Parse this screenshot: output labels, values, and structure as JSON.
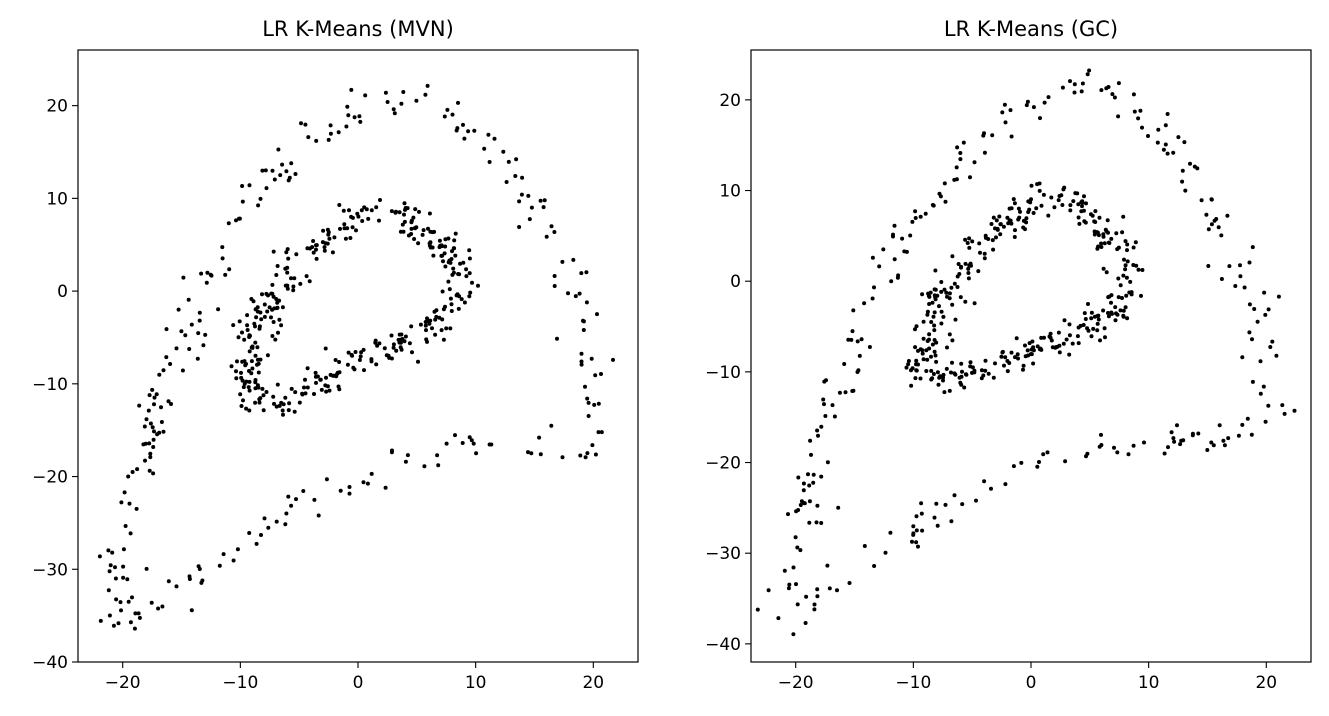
{
  "chart_data": [
    {
      "type": "scatter",
      "title": "LR K-Means (MVN)",
      "xlabel": "",
      "ylabel": "",
      "xlim": [
        -23.8,
        23.8
      ],
      "ylim": [
        -40,
        26
      ],
      "xticks": [
        -20,
        -10,
        0,
        10,
        20
      ],
      "yticks": [
        -40,
        -30,
        -20,
        -10,
        0,
        10,
        20
      ],
      "xtick_labels": [
        "−20",
        "−10",
        "0",
        "10",
        "20"
      ],
      "ytick_labels": [
        "−40",
        "−30",
        "−20",
        "−10",
        "0",
        "10",
        "20"
      ],
      "grid": false,
      "point_color": "#000000",
      "outer_ring_anchors": [
        [
          -20.8,
          -36.5
        ],
        [
          -20.5,
          -32
        ],
        [
          -20.2,
          -28
        ],
        [
          -19.5,
          -24
        ],
        [
          -18.8,
          -20
        ],
        [
          -17.8,
          -16.5
        ],
        [
          -16.7,
          -12.5
        ],
        [
          -15.5,
          -8
        ],
        [
          -14.5,
          -4.5
        ],
        [
          -13.7,
          -0.5
        ],
        [
          -12.5,
          2.5
        ],
        [
          -11,
          5.5
        ],
        [
          -9.5,
          8.5
        ],
        [
          -8,
          11
        ],
        [
          -6,
          13.5
        ],
        [
          -4,
          16
        ],
        [
          -2,
          18.3
        ],
        [
          0,
          19.5
        ],
        [
          2,
          20.5
        ],
        [
          4,
          21.2
        ],
        [
          6,
          21
        ],
        [
          8,
          20
        ],
        [
          9.5,
          18
        ],
        [
          11,
          16
        ],
        [
          12.5,
          13
        ],
        [
          13.5,
          11
        ],
        [
          14.5,
          9.5
        ],
        [
          16,
          7
        ],
        [
          17.3,
          5
        ],
        [
          18,
          2
        ],
        [
          18.7,
          -1.5
        ],
        [
          19.3,
          -5
        ],
        [
          19.8,
          -9
        ],
        [
          20.3,
          -12
        ],
        [
          20.5,
          -16
        ],
        [
          19.5,
          -17.5
        ],
        [
          17.5,
          -17.8
        ],
        [
          15,
          -17.5
        ],
        [
          12,
          -17.2
        ],
        [
          9.5,
          -17
        ],
        [
          7,
          -17.2
        ],
        [
          4.5,
          -18
        ],
        [
          2,
          -18.8
        ],
        [
          -0.5,
          -20
        ],
        [
          -3,
          -21.5
        ],
        [
          -5.5,
          -23
        ],
        [
          -8,
          -25
        ],
        [
          -10,
          -27
        ],
        [
          -12,
          -29
        ],
        [
          -14,
          -31
        ],
        [
          -16,
          -33
        ],
        [
          -18,
          -34.5
        ],
        [
          -20,
          -36.5
        ]
      ],
      "inner_ring_anchors": [
        [
          -9.5,
          -11
        ],
        [
          -9.2,
          -7
        ],
        [
          -8.5,
          -4
        ],
        [
          -7.5,
          -1
        ],
        [
          -6,
          2.2
        ],
        [
          -4.5,
          4
        ],
        [
          -2.5,
          6
        ],
        [
          -0.5,
          8
        ],
        [
          2,
          9
        ],
        [
          4,
          8
        ],
        [
          6,
          6.5
        ],
        [
          7.5,
          4
        ],
        [
          8.5,
          1.5
        ],
        [
          8.5,
          0
        ],
        [
          7.5,
          -2
        ],
        [
          5.5,
          -4.5
        ],
        [
          4,
          -5.5
        ],
        [
          2.5,
          -6
        ],
        [
          0.5,
          -7.5
        ],
        [
          -2,
          -8.8
        ],
        [
          -4,
          -10
        ],
        [
          -6,
          -11.2
        ],
        [
          -7.8,
          -11.5
        ],
        [
          -9.5,
          -11
        ]
      ],
      "num_points": 640,
      "seed": 11
    },
    {
      "type": "scatter",
      "title": "LR K-Means (GC)",
      "xlabel": "",
      "ylabel": "",
      "xlim": [
        -23.8,
        23.8
      ],
      "ylim": [
        -42,
        25.5
      ],
      "xticks": [
        -20,
        -10,
        0,
        10,
        20
      ],
      "yticks": [
        -40,
        -30,
        -20,
        -10,
        0,
        10,
        20
      ],
      "xtick_labels": [
        "−20",
        "−10",
        "0",
        "10",
        "20"
      ],
      "ytick_labels": [
        "−40",
        "−30",
        "−20",
        "−10",
        "0",
        "10",
        "20"
      ],
      "grid": false,
      "point_color": "#000000",
      "outer_ring_anchors": [
        [
          -21,
          -38.5
        ],
        [
          -20.5,
          -34
        ],
        [
          -20,
          -30
        ],
        [
          -19.2,
          -25
        ],
        [
          -18.5,
          -21
        ],
        [
          -17.5,
          -17
        ],
        [
          -16.5,
          -13
        ],
        [
          -15.5,
          -8
        ],
        [
          -14.5,
          -5
        ],
        [
          -13.5,
          -1
        ],
        [
          -12,
          2.5
        ],
        [
          -10.5,
          5.5
        ],
        [
          -9,
          8
        ],
        [
          -7.5,
          11
        ],
        [
          -5.5,
          13.5
        ],
        [
          -3.5,
          16
        ],
        [
          -1.5,
          18.5
        ],
        [
          0.5,
          20
        ],
        [
          2.5,
          21
        ],
        [
          4.5,
          21.5
        ],
        [
          6.5,
          21
        ],
        [
          8.5,
          19.5
        ],
        [
          10.5,
          17.5
        ],
        [
          12,
          15.5
        ],
        [
          13.5,
          12
        ],
        [
          14.5,
          10
        ],
        [
          15.5,
          8
        ],
        [
          17,
          5
        ],
        [
          18,
          2
        ],
        [
          18.8,
          -1.5
        ],
        [
          19.5,
          -5
        ],
        [
          20,
          -8.5
        ],
        [
          20.5,
          -12
        ],
        [
          20.8,
          -15.5
        ],
        [
          19.5,
          -16.5
        ],
        [
          17.5,
          -16.8
        ],
        [
          15,
          -17
        ],
        [
          12.5,
          -17.2
        ],
        [
          10,
          -17.5
        ],
        [
          8,
          -18.2
        ],
        [
          6,
          -18.5
        ],
        [
          3.5,
          -19
        ],
        [
          1,
          -19.8
        ],
        [
          -1.5,
          -21
        ],
        [
          -4,
          -22.5
        ],
        [
          -6.5,
          -24.5
        ],
        [
          -9,
          -26.5
        ],
        [
          -11.5,
          -28.5
        ],
        [
          -14,
          -30.5
        ],
        [
          -16,
          -32.5
        ],
        [
          -18.5,
          -34.5
        ],
        [
          -21,
          -38.5
        ]
      ],
      "inner_ring_anchors": [
        [
          -9.5,
          -10.5
        ],
        [
          -9,
          -7
        ],
        [
          -8.2,
          -3.5
        ],
        [
          -7,
          -0.5
        ],
        [
          -5.5,
          2.5
        ],
        [
          -4,
          4.5
        ],
        [
          -2,
          6.5
        ],
        [
          0,
          8.5
        ],
        [
          2,
          9.5
        ],
        [
          4,
          8.5
        ],
        [
          6,
          6
        ],
        [
          7.5,
          3.5
        ],
        [
          8.5,
          1
        ],
        [
          8.3,
          -1
        ],
        [
          7,
          -3
        ],
        [
          5.5,
          -4.5
        ],
        [
          4,
          -5.5
        ],
        [
          2,
          -6.5
        ],
        [
          0,
          -7.5
        ],
        [
          -2,
          -8.5
        ],
        [
          -4,
          -9.5
        ],
        [
          -6,
          -10.5
        ],
        [
          -8,
          -11
        ],
        [
          -9.5,
          -10.5
        ]
      ],
      "num_points": 640,
      "seed": 29
    }
  ]
}
